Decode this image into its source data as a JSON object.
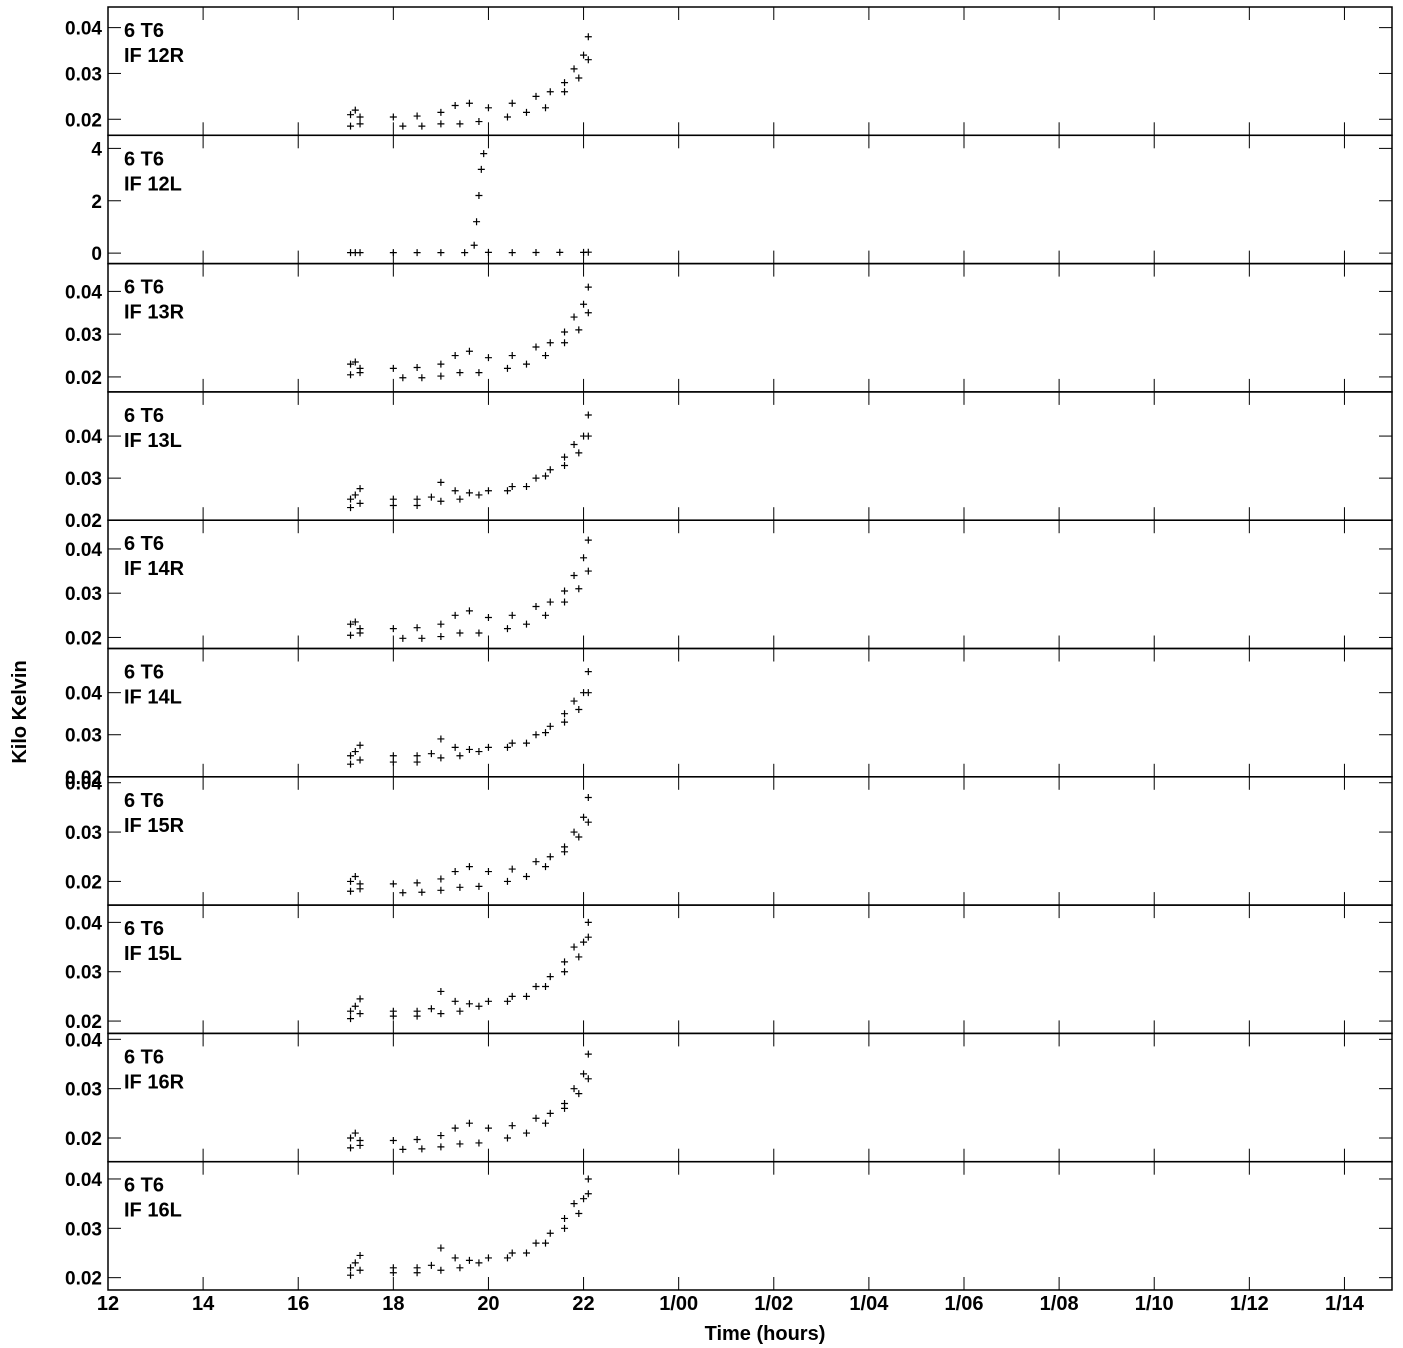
{
  "chart_data": {
    "type": "scatter",
    "xlabel": "Time (hours)",
    "ylabel": "Kilo Kelvin",
    "x_tick_labels": [
      "12",
      "14",
      "16",
      "18",
      "20",
      "22",
      "1/00",
      "1/02",
      "1/04",
      "1/06",
      "1/08",
      "1/10",
      "1/12",
      "1/14"
    ],
    "xlim": [
      12,
      39
    ],
    "marker": "+",
    "color": "#000000",
    "panels": [
      {
        "antenna": "6 T6",
        "if_label": "IF 12R",
        "ylim": [
          0.0165,
          0.0445
        ],
        "y_ticks": [
          0.02,
          0.03,
          0.04
        ],
        "y_tick_labels": [
          "0.02",
          "0.03",
          "0.04"
        ],
        "series": [
          {
            "x": [
              17.1,
              17.2,
              17.3,
              18.0,
              18.5,
              19.0,
              19.3,
              19.6,
              20.0,
              20.5,
              21.0,
              21.3,
              21.6,
              21.8,
              22.0,
              22.1
            ],
            "y": [
              0.021,
              0.022,
              0.0205,
              0.0205,
              0.0207,
              0.0215,
              0.023,
              0.0235,
              0.0225,
              0.0235,
              0.025,
              0.026,
              0.028,
              0.031,
              0.034,
              0.038
            ]
          },
          {
            "x": [
              17.1,
              17.3,
              18.2,
              18.6,
              19.0,
              19.4,
              19.8,
              20.4,
              20.8,
              21.2,
              21.6,
              21.9,
              22.1
            ],
            "y": [
              0.0185,
              0.019,
              0.0185,
              0.0185,
              0.019,
              0.019,
              0.0195,
              0.0205,
              0.0215,
              0.0225,
              0.026,
              0.029,
              0.033
            ]
          }
        ]
      },
      {
        "antenna": "6 T6",
        "if_label": "IF 12L",
        "ylim": [
          -0.4,
          4.5
        ],
        "y_ticks": [
          0,
          2,
          4
        ],
        "y_tick_labels": [
          "0",
          "2",
          "4"
        ],
        "series": [
          {
            "x": [
              17.1,
              17.2,
              17.3,
              18.0,
              18.5,
              19.0,
              19.5,
              19.7,
              19.75,
              19.8,
              19.85,
              19.9,
              20.0,
              20.5,
              21.0,
              21.5,
              22.0,
              22.1
            ],
            "y": [
              0.02,
              0.02,
              0.02,
              0.02,
              0.02,
              0.02,
              0.02,
              0.3,
              1.2,
              2.2,
              3.2,
              3.8,
              0.03,
              0.02,
              0.025,
              0.03,
              0.03,
              0.035
            ]
          }
        ]
      },
      {
        "antenna": "6 T6",
        "if_label": "IF 13R",
        "ylim": [
          0.0165,
          0.0465
        ],
        "y_ticks": [
          0.02,
          0.03,
          0.04
        ],
        "y_tick_labels": [
          "0.02",
          "0.03",
          "0.04"
        ],
        "series": [
          {
            "x": [
              17.1,
              17.2,
              17.3,
              18.0,
              18.5,
              19.0,
              19.3,
              19.6,
              20.0,
              20.5,
              21.0,
              21.3,
              21.6,
              21.8,
              22.0,
              22.1
            ],
            "y": [
              0.023,
              0.0235,
              0.022,
              0.022,
              0.0222,
              0.023,
              0.025,
              0.026,
              0.0245,
              0.025,
              0.027,
              0.028,
              0.0305,
              0.034,
              0.037,
              0.041
            ]
          },
          {
            "x": [
              17.1,
              17.3,
              18.2,
              18.6,
              19.0,
              19.4,
              19.8,
              20.4,
              20.8,
              21.2,
              21.6,
              21.9,
              22.1
            ],
            "y": [
              0.0205,
              0.021,
              0.0198,
              0.0198,
              0.0202,
              0.021,
              0.021,
              0.022,
              0.023,
              0.025,
              0.028,
              0.031,
              0.035
            ]
          }
        ]
      },
      {
        "antenna": "6 T6",
        "if_label": "IF 13L",
        "ylim": [
          0.02,
          0.0505
        ],
        "y_ticks": [
          0.02,
          0.03,
          0.04
        ],
        "y_tick_labels": [
          "0.02",
          "0.03",
          "0.04"
        ],
        "series": [
          {
            "x": [
              17.1,
              17.2,
              17.3,
              18.0,
              18.5,
              18.8,
              19.0,
              19.3,
              19.6,
              20.0,
              20.5,
              21.0,
              21.3,
              21.6,
              21.8,
              22.0,
              22.1
            ],
            "y": [
              0.025,
              0.026,
              0.0275,
              0.025,
              0.025,
              0.0255,
              0.029,
              0.027,
              0.0265,
              0.027,
              0.028,
              0.03,
              0.032,
              0.035,
              0.038,
              0.04,
              0.045
            ]
          },
          {
            "x": [
              17.1,
              17.3,
              18.0,
              18.5,
              19.0,
              19.4,
              19.8,
              20.4,
              20.8,
              21.2,
              21.6,
              21.9,
              22.1
            ],
            "y": [
              0.023,
              0.024,
              0.0235,
              0.0235,
              0.0245,
              0.025,
              0.026,
              0.027,
              0.028,
              0.0305,
              0.033,
              0.036,
              0.04
            ]
          }
        ]
      },
      {
        "antenna": "6 T6",
        "if_label": "IF 14R",
        "ylim": [
          0.0175,
          0.0465
        ],
        "y_ticks": [
          0.02,
          0.03,
          0.04
        ],
        "y_tick_labels": [
          "0.02",
          "0.03",
          "0.04"
        ],
        "series": [
          {
            "x": [
              17.1,
              17.2,
              17.3,
              18.0,
              18.5,
              19.0,
              19.3,
              19.6,
              20.0,
              20.5,
              21.0,
              21.3,
              21.6,
              21.8,
              22.0,
              22.1
            ],
            "y": [
              0.023,
              0.0235,
              0.022,
              0.022,
              0.0222,
              0.023,
              0.025,
              0.026,
              0.0245,
              0.025,
              0.027,
              0.028,
              0.0305,
              0.034,
              0.038,
              0.042
            ]
          },
          {
            "x": [
              17.1,
              17.3,
              18.2,
              18.6,
              19.0,
              19.4,
              19.8,
              20.4,
              20.8,
              21.2,
              21.6,
              21.9,
              22.1
            ],
            "y": [
              0.0205,
              0.021,
              0.0198,
              0.0198,
              0.0202,
              0.021,
              0.021,
              0.022,
              0.023,
              0.025,
              0.028,
              0.031,
              0.035
            ]
          }
        ]
      },
      {
        "antenna": "6 T6",
        "if_label": "IF 14L",
        "ylim": [
          0.02,
          0.0505
        ],
        "y_ticks": [
          0.02,
          0.03,
          0.04
        ],
        "y_tick_labels": [
          "0.02",
          "0.03",
          "0.04"
        ],
        "series": [
          {
            "x": [
              17.1,
              17.2,
              17.3,
              18.0,
              18.5,
              18.8,
              19.0,
              19.3,
              19.6,
              20.0,
              20.5,
              21.0,
              21.3,
              21.6,
              21.8,
              22.0,
              22.1
            ],
            "y": [
              0.025,
              0.026,
              0.0275,
              0.025,
              0.025,
              0.0255,
              0.029,
              0.027,
              0.0265,
              0.027,
              0.028,
              0.03,
              0.032,
              0.035,
              0.038,
              0.04,
              0.045
            ]
          },
          {
            "x": [
              17.1,
              17.3,
              18.0,
              18.5,
              19.0,
              19.4,
              19.8,
              20.4,
              20.8,
              21.2,
              21.6,
              21.9,
              22.1
            ],
            "y": [
              0.023,
              0.024,
              0.0235,
              0.0235,
              0.0245,
              0.025,
              0.026,
              0.027,
              0.028,
              0.0305,
              0.033,
              0.036,
              0.04
            ]
          }
        ]
      },
      {
        "antenna": "6 T6",
        "if_label": "IF 15R",
        "ylim": [
          0.0152,
          0.0412
        ],
        "y_ticks": [
          0.02,
          0.03,
          0.04
        ],
        "y_tick_labels": [
          "0.02",
          "0.03",
          "0.04"
        ],
        "series": [
          {
            "x": [
              17.1,
              17.2,
              17.3,
              18.0,
              18.5,
              19.0,
              19.3,
              19.6,
              20.0,
              20.5,
              21.0,
              21.3,
              21.6,
              21.8,
              22.0,
              22.1
            ],
            "y": [
              0.02,
              0.021,
              0.0195,
              0.0195,
              0.0197,
              0.0205,
              0.022,
              0.023,
              0.022,
              0.0225,
              0.024,
              0.025,
              0.027,
              0.03,
              0.033,
              0.037
            ]
          },
          {
            "x": [
              17.1,
              17.3,
              18.2,
              18.6,
              19.0,
              19.4,
              19.8,
              20.4,
              20.8,
              21.2,
              21.6,
              21.9,
              22.1
            ],
            "y": [
              0.018,
              0.0185,
              0.0177,
              0.0178,
              0.0182,
              0.0188,
              0.019,
              0.02,
              0.021,
              0.023,
              0.026,
              0.029,
              0.032
            ]
          }
        ]
      },
      {
        "antenna": "6 T6",
        "if_label": "IF 15L",
        "ylim": [
          0.0175,
          0.0435
        ],
        "y_ticks": [
          0.02,
          0.03,
          0.04
        ],
        "y_tick_labels": [
          "0.02",
          "0.03",
          "0.04"
        ],
        "series": [
          {
            "x": [
              17.1,
              17.2,
              17.3,
              18.0,
              18.5,
              18.8,
              19.0,
              19.3,
              19.6,
              20.0,
              20.5,
              21.0,
              21.3,
              21.6,
              21.8,
              22.0,
              22.1
            ],
            "y": [
              0.022,
              0.023,
              0.0245,
              0.022,
              0.022,
              0.0225,
              0.026,
              0.024,
              0.0235,
              0.024,
              0.025,
              0.027,
              0.029,
              0.032,
              0.035,
              0.036,
              0.04
            ]
          },
          {
            "x": [
              17.1,
              17.3,
              18.0,
              18.5,
              19.0,
              19.4,
              19.8,
              20.4,
              20.8,
              21.2,
              21.6,
              21.9,
              22.1
            ],
            "y": [
              0.0205,
              0.0215,
              0.021,
              0.021,
              0.0215,
              0.022,
              0.023,
              0.024,
              0.025,
              0.027,
              0.03,
              0.033,
              0.037
            ]
          }
        ]
      },
      {
        "antenna": "6 T6",
        "if_label": "IF 16R",
        "ylim": [
          0.0152,
          0.0412
        ],
        "y_ticks": [
          0.02,
          0.03,
          0.04
        ],
        "y_tick_labels": [
          "0.02",
          "0.03",
          "0.04"
        ],
        "series": [
          {
            "x": [
              17.1,
              17.2,
              17.3,
              18.0,
              18.5,
              19.0,
              19.3,
              19.6,
              20.0,
              20.5,
              21.0,
              21.3,
              21.6,
              21.8,
              22.0,
              22.1
            ],
            "y": [
              0.02,
              0.021,
              0.0195,
              0.0195,
              0.0197,
              0.0205,
              0.022,
              0.023,
              0.022,
              0.0225,
              0.024,
              0.025,
              0.027,
              0.03,
              0.033,
              0.037
            ]
          },
          {
            "x": [
              17.1,
              17.3,
              18.2,
              18.6,
              19.0,
              19.4,
              19.8,
              20.4,
              20.8,
              21.2,
              21.6,
              21.9,
              22.1
            ],
            "y": [
              0.018,
              0.0185,
              0.0177,
              0.0178,
              0.0182,
              0.0188,
              0.019,
              0.02,
              0.021,
              0.023,
              0.026,
              0.029,
              0.032
            ]
          }
        ]
      },
      {
        "antenna": "6 T6",
        "if_label": "IF 16L",
        "ylim": [
          0.0175,
          0.0435
        ],
        "y_ticks": [
          0.02,
          0.03,
          0.04
        ],
        "y_tick_labels": [
          "0.02",
          "0.03",
          "0.04"
        ],
        "series": [
          {
            "x": [
              17.1,
              17.2,
              17.3,
              18.0,
              18.5,
              18.8,
              19.0,
              19.3,
              19.6,
              20.0,
              20.5,
              21.0,
              21.3,
              21.6,
              21.8,
              22.0,
              22.1
            ],
            "y": [
              0.022,
              0.023,
              0.0245,
              0.022,
              0.022,
              0.0225,
              0.026,
              0.024,
              0.0235,
              0.024,
              0.025,
              0.027,
              0.029,
              0.032,
              0.035,
              0.036,
              0.04
            ]
          },
          {
            "x": [
              17.1,
              17.3,
              18.0,
              18.5,
              19.0,
              19.4,
              19.8,
              20.4,
              20.8,
              21.2,
              21.6,
              21.9,
              22.1
            ],
            "y": [
              0.0205,
              0.0215,
              0.021,
              0.021,
              0.0215,
              0.022,
              0.023,
              0.024,
              0.025,
              0.027,
              0.03,
              0.033,
              0.037
            ]
          }
        ]
      }
    ]
  }
}
